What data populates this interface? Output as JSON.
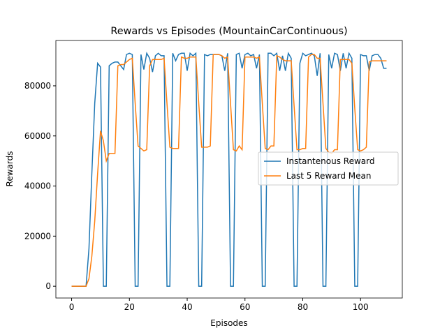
{
  "chart_data": {
    "type": "line",
    "title": "Rewards vs Episodes (MountainCarContinuous)",
    "x_label": "Episodes",
    "y_label": "Rewards",
    "x": [
      0,
      1,
      2,
      3,
      4,
      5,
      6,
      7,
      8,
      9,
      10,
      11,
      12,
      13,
      14,
      15,
      16,
      17,
      18,
      19,
      20,
      21,
      22,
      23,
      24,
      25,
      26,
      27,
      28,
      29,
      30,
      31,
      32,
      33,
      34,
      35,
      36,
      37,
      38,
      39,
      40,
      41,
      42,
      43,
      44,
      45,
      46,
      47,
      48,
      49,
      50,
      51,
      52,
      53,
      54,
      55,
      56,
      57,
      58,
      59,
      60,
      61,
      62,
      63,
      64,
      65,
      66,
      67,
      68,
      69,
      70,
      71,
      72,
      73,
      74,
      75,
      76,
      77,
      78,
      79,
      80,
      81,
      82,
      83,
      84,
      85,
      86,
      87,
      88,
      89,
      90,
      91,
      92,
      93,
      94,
      95,
      96,
      97,
      98,
      99,
      100,
      101,
      102,
      103,
      104,
      105,
      106,
      107,
      108,
      109
    ],
    "series": [
      {
        "name": "Instantenous Reward",
        "color": "#1f77b4",
        "values": [
          0,
          0,
          0,
          0,
          0,
          0,
          15000,
          45000,
          73000,
          89000,
          87500,
          0,
          0,
          88000,
          89000,
          89500,
          89500,
          88000,
          86500,
          92500,
          93000,
          92500,
          0,
          0,
          92500,
          86500,
          93000,
          91000,
          85500,
          92000,
          93000,
          92000,
          92000,
          0,
          0,
          93000,
          90000,
          92500,
          93000,
          93000,
          86000,
          93000,
          92000,
          93000,
          0,
          0,
          92500,
          92000,
          92500,
          92500,
          92500,
          92500,
          92000,
          86000,
          93000,
          0,
          0,
          92500,
          93000,
          87000,
          92500,
          93000,
          92000,
          92500,
          87000,
          92500,
          0,
          0,
          93000,
          93000,
          92000,
          93000,
          86000,
          92000,
          86000,
          93000,
          91000,
          0,
          0,
          89000,
          93000,
          92000,
          92500,
          93000,
          92000,
          84000,
          93000,
          0,
          0,
          92500,
          87000,
          93000,
          92500,
          86000,
          93000,
          87000,
          93000,
          91000,
          0,
          0,
          92500,
          92000,
          92000,
          86000,
          92000,
          92500,
          92500,
          91000,
          87000,
          87000
        ]
      },
      {
        "name": "Last 5 Reward Mean",
        "color": "#ff7f0e",
        "values": [
          0,
          0,
          0,
          0,
          0,
          0,
          3000,
          12000,
          26000,
          45000,
          62000,
          58000,
          50000,
          53000,
          53000,
          53000,
          88000,
          88500,
          88500,
          89500,
          90500,
          91000,
          73000,
          56000,
          55000,
          54000,
          54500,
          88000,
          90500,
          90500,
          90500,
          90500,
          91000,
          73000,
          55500,
          55000,
          55000,
          55000,
          91500,
          91000,
          91000,
          91500,
          91500,
          91500,
          73000,
          55500,
          55500,
          55500,
          56000,
          92500,
          92500,
          92500,
          92000,
          91000,
          91500,
          73000,
          54500,
          54000,
          56000,
          54500,
          91500,
          91500,
          91500,
          91500,
          91000,
          91500,
          73000,
          55000,
          54500,
          56000,
          56000,
          92000,
          91500,
          90500,
          90000,
          90000,
          90000,
          72000,
          54500,
          54500,
          55000,
          55000,
          91500,
          92500,
          92500,
          91000,
          91000,
          73000,
          55000,
          53500,
          53000,
          54500,
          54500,
          90500,
          90500,
          90500,
          90500,
          89000,
          71000,
          54500,
          54000,
          54500,
          55500,
          89500,
          90000,
          90000,
          90000,
          90000,
          90000,
          90000
        ]
      }
    ],
    "xlim": [
      -5.45,
      114.45
    ],
    "ylim": [
      -4700,
      98100
    ],
    "xticks": [
      0,
      20,
      40,
      60,
      80,
      100
    ],
    "yticks": [
      0,
      20000,
      40000,
      60000,
      80000
    ],
    "legend": "center right"
  }
}
